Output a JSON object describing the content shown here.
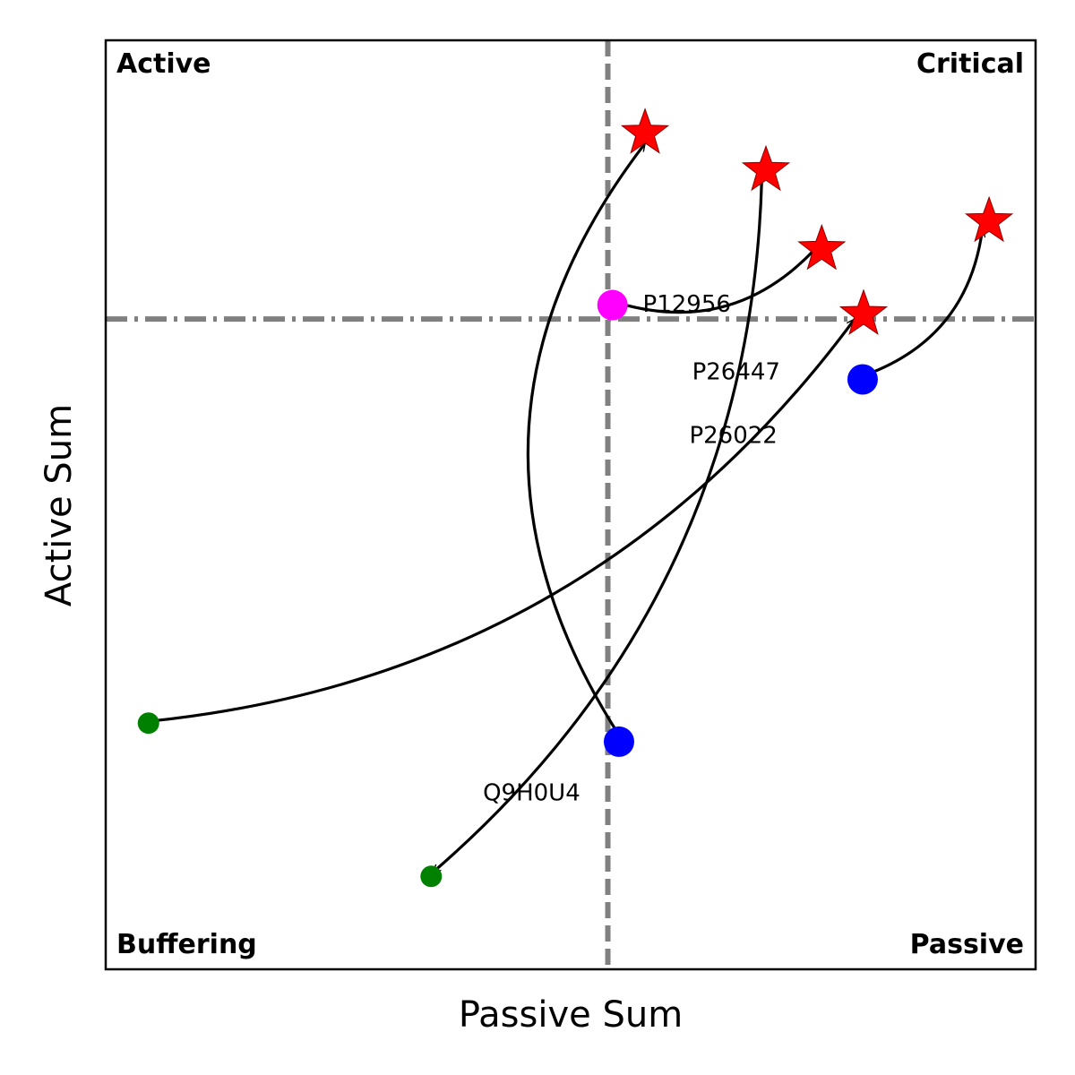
{
  "chart_data": {
    "type": "scatter",
    "xlabel": "Passive Sum",
    "ylabel": "Active Sum",
    "xlim": [
      0,
      100
    ],
    "ylim": [
      0,
      100
    ],
    "grid": false,
    "reference_lines": [
      {
        "orientation": "vertical",
        "value": 54,
        "style": "dashed",
        "color": "#808080"
      },
      {
        "orientation": "horizontal",
        "value": 70,
        "style": "dashdot",
        "color": "#808080"
      }
    ],
    "quadrant_labels": {
      "top_left": "Active",
      "top_right": "Critical",
      "bottom_left": "Buffering",
      "bottom_right": "Passive"
    },
    "points": [
      {
        "x": 54.5,
        "y": 71.5,
        "marker": "circle",
        "size": "large",
        "color": "#ff00ff"
      },
      {
        "x": 55.2,
        "y": 24.5,
        "marker": "circle",
        "size": "large",
        "color": "#0000ff"
      },
      {
        "x": 81.4,
        "y": 63.5,
        "marker": "circle",
        "size": "large",
        "color": "#0000ff"
      },
      {
        "x": 4.6,
        "y": 26.5,
        "marker": "circle",
        "size": "small",
        "color": "#008000"
      },
      {
        "x": 35.0,
        "y": 10.0,
        "marker": "circle",
        "size": "small",
        "color": "#008000"
      },
      {
        "x": 58.0,
        "y": 90.0,
        "marker": "star",
        "color": "#ff0000"
      },
      {
        "x": 71.0,
        "y": 86.0,
        "marker": "star",
        "color": "#ff0000"
      },
      {
        "x": 77.0,
        "y": 77.5,
        "marker": "star",
        "color": "#ff0000"
      },
      {
        "x": 81.5,
        "y": 70.5,
        "marker": "star",
        "color": "#ff0000"
      },
      {
        "x": 95.0,
        "y": 80.5,
        "marker": "star",
        "color": "#ff0000"
      }
    ],
    "arrows": [
      {
        "from": 7,
        "to": 0,
        "bend": 0.3
      },
      {
        "from": 1,
        "to": 5,
        "bend": 0.35
      },
      {
        "from": 3,
        "to": 8,
        "bend": -0.22
      },
      {
        "from": 6,
        "to": 4,
        "bend": 0.22
      },
      {
        "from": 2,
        "to": 9,
        "bend": -0.3
      }
    ],
    "annotations": [
      {
        "text": "P12956",
        "x": 62.5,
        "y": 71.5
      },
      {
        "text": "P26447",
        "x": 67.8,
        "y": 64.2
      },
      {
        "text": "P26022",
        "x": 67.5,
        "y": 57.4
      },
      {
        "text": "Q9H0U4",
        "x": 45.8,
        "y": 18.9
      }
    ]
  }
}
